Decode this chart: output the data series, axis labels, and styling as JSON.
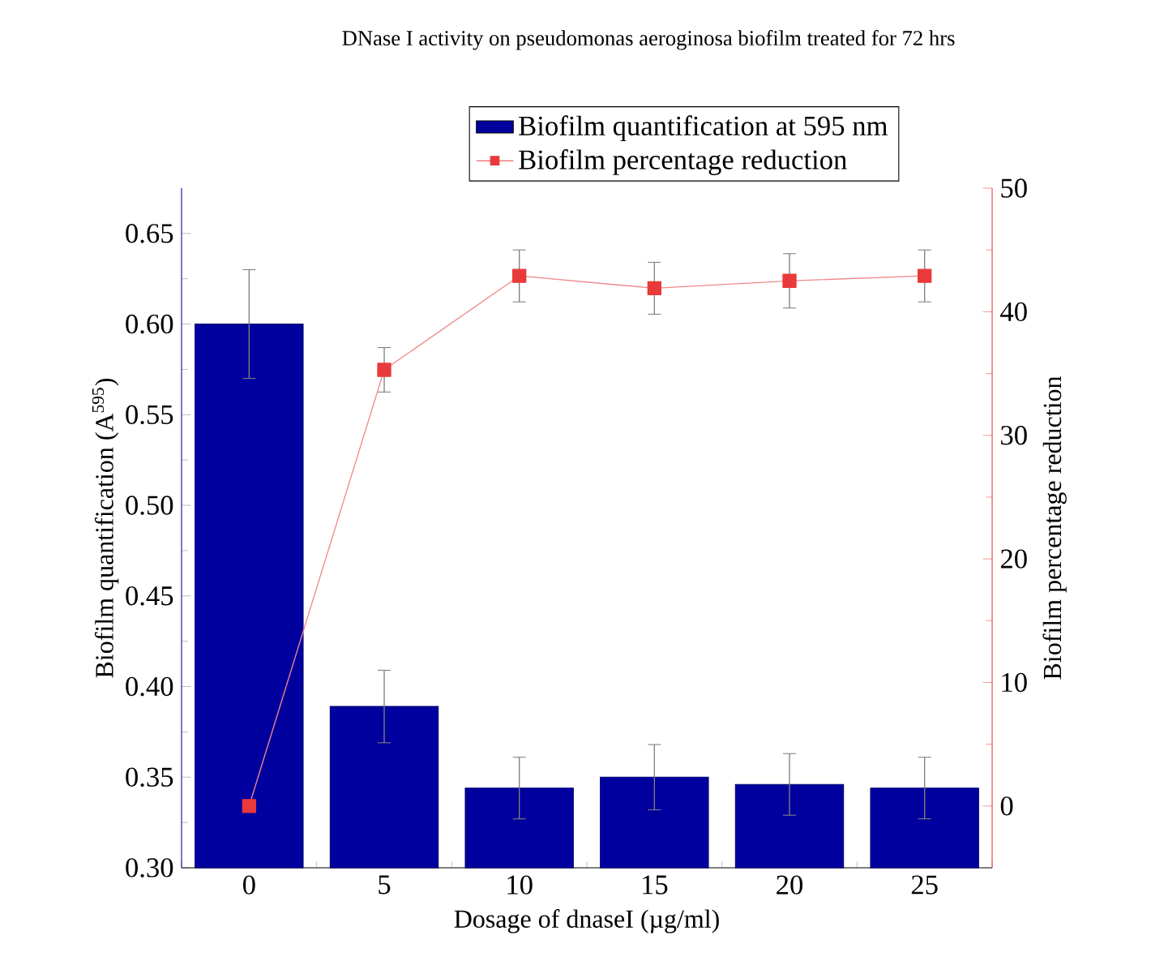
{
  "chart_data": {
    "type": "bar",
    "title": "DNase I activity on pseudomonas aeroginosa biofilm treated for 72 hrs",
    "xlabel": "Dosage of dnaseI (µg/ml)",
    "ylabel": "Biofilm quantification (A$^{595}$)",
    "y2label": "Biofilm percentage reduction",
    "categories": [
      "0",
      "5",
      "10",
      "15",
      "20",
      "25"
    ],
    "series": [
      {
        "name": "Biofilm quantification at 595 nm",
        "color": "#00009f",
        "values": [
          0.6,
          0.389,
          0.344,
          0.35,
          0.346,
          0.344
        ],
        "errors": [
          0.03,
          0.02,
          0.017,
          0.018,
          0.017,
          0.017
        ]
      },
      {
        "name": "Biofilm percentage reduction",
        "type": "line",
        "axis": "y2",
        "marker": "square",
        "color": "#e83a3a",
        "values": [
          0,
          35.3,
          42.9,
          41.9,
          42.5,
          42.9
        ],
        "errors": [
          null,
          1.8,
          2.1,
          2.1,
          2.2,
          2.1
        ]
      }
    ],
    "ylim": [
      0.3,
      0.675
    ],
    "yticks": [
      {
        "value": 0.3,
        "label": "0.30"
      },
      0.35,
      {
        "value": 0.4,
        "label": "0.40"
      },
      0.45,
      {
        "value": 0.5,
        "label": "0.50"
      },
      0.55,
      {
        "value": 0.6,
        "label": "0.60"
      },
      0.65
    ],
    "y2lim": [
      -5,
      50
    ],
    "y2ticks": [
      0,
      10,
      20,
      30,
      40,
      50
    ],
    "legend": "top"
  }
}
